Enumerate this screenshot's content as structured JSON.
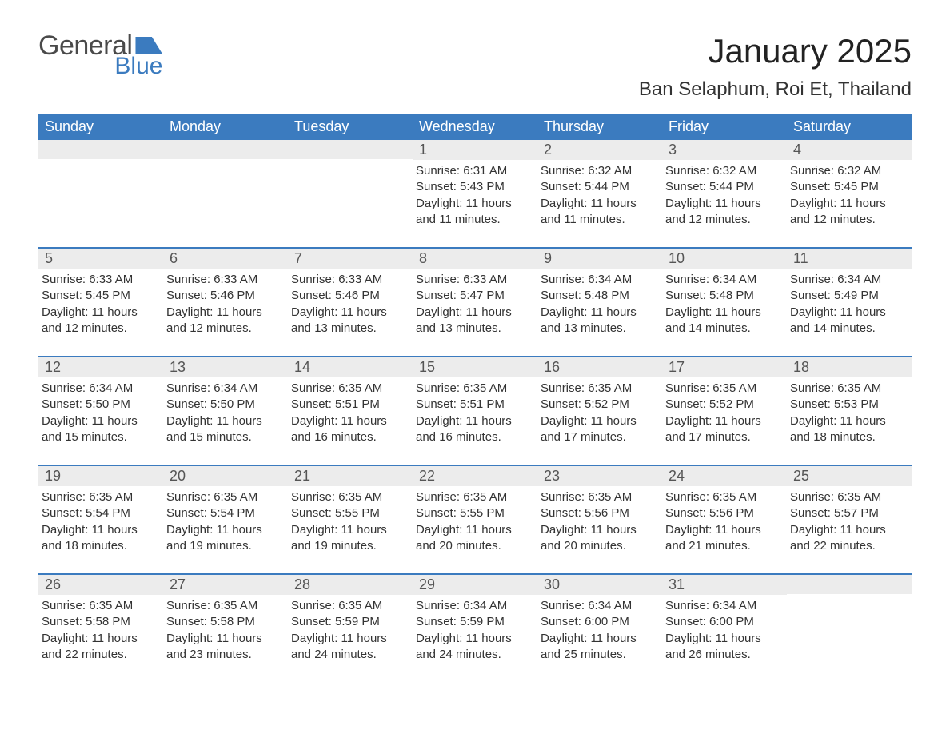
{
  "logo": {
    "text_general": "General",
    "text_blue": "Blue"
  },
  "title": {
    "month": "January 2025",
    "location": "Ban Selaphum, Roi Et, Thailand"
  },
  "style": {
    "header_bg": "#3b7bbf",
    "header_text": "#ffffff",
    "daynum_bg": "#ececec",
    "daynum_text": "#555555",
    "body_text": "#333333",
    "row_border": "#3b7bbf",
    "page_bg": "#ffffff",
    "month_fontsize": 42,
    "location_fontsize": 24,
    "dayheader_fontsize": 18,
    "content_fontsize": 15
  },
  "day_names": [
    "Sunday",
    "Monday",
    "Tuesday",
    "Wednesday",
    "Thursday",
    "Friday",
    "Saturday"
  ],
  "weeks": [
    [
      {
        "day": null
      },
      {
        "day": null
      },
      {
        "day": null
      },
      {
        "day": 1,
        "sunrise": "6:31 AM",
        "sunset": "5:43 PM",
        "daylight": "11 hours and 11 minutes."
      },
      {
        "day": 2,
        "sunrise": "6:32 AM",
        "sunset": "5:44 PM",
        "daylight": "11 hours and 11 minutes."
      },
      {
        "day": 3,
        "sunrise": "6:32 AM",
        "sunset": "5:44 PM",
        "daylight": "11 hours and 12 minutes."
      },
      {
        "day": 4,
        "sunrise": "6:32 AM",
        "sunset": "5:45 PM",
        "daylight": "11 hours and 12 minutes."
      }
    ],
    [
      {
        "day": 5,
        "sunrise": "6:33 AM",
        "sunset": "5:45 PM",
        "daylight": "11 hours and 12 minutes."
      },
      {
        "day": 6,
        "sunrise": "6:33 AM",
        "sunset": "5:46 PM",
        "daylight": "11 hours and 12 minutes."
      },
      {
        "day": 7,
        "sunrise": "6:33 AM",
        "sunset": "5:46 PM",
        "daylight": "11 hours and 13 minutes."
      },
      {
        "day": 8,
        "sunrise": "6:33 AM",
        "sunset": "5:47 PM",
        "daylight": "11 hours and 13 minutes."
      },
      {
        "day": 9,
        "sunrise": "6:34 AM",
        "sunset": "5:48 PM",
        "daylight": "11 hours and 13 minutes."
      },
      {
        "day": 10,
        "sunrise": "6:34 AM",
        "sunset": "5:48 PM",
        "daylight": "11 hours and 14 minutes."
      },
      {
        "day": 11,
        "sunrise": "6:34 AM",
        "sunset": "5:49 PM",
        "daylight": "11 hours and 14 minutes."
      }
    ],
    [
      {
        "day": 12,
        "sunrise": "6:34 AM",
        "sunset": "5:50 PM",
        "daylight": "11 hours and 15 minutes."
      },
      {
        "day": 13,
        "sunrise": "6:34 AM",
        "sunset": "5:50 PM",
        "daylight": "11 hours and 15 minutes."
      },
      {
        "day": 14,
        "sunrise": "6:35 AM",
        "sunset": "5:51 PM",
        "daylight": "11 hours and 16 minutes."
      },
      {
        "day": 15,
        "sunrise": "6:35 AM",
        "sunset": "5:51 PM",
        "daylight": "11 hours and 16 minutes."
      },
      {
        "day": 16,
        "sunrise": "6:35 AM",
        "sunset": "5:52 PM",
        "daylight": "11 hours and 17 minutes."
      },
      {
        "day": 17,
        "sunrise": "6:35 AM",
        "sunset": "5:52 PM",
        "daylight": "11 hours and 17 minutes."
      },
      {
        "day": 18,
        "sunrise": "6:35 AM",
        "sunset": "5:53 PM",
        "daylight": "11 hours and 18 minutes."
      }
    ],
    [
      {
        "day": 19,
        "sunrise": "6:35 AM",
        "sunset": "5:54 PM",
        "daylight": "11 hours and 18 minutes."
      },
      {
        "day": 20,
        "sunrise": "6:35 AM",
        "sunset": "5:54 PM",
        "daylight": "11 hours and 19 minutes."
      },
      {
        "day": 21,
        "sunrise": "6:35 AM",
        "sunset": "5:55 PM",
        "daylight": "11 hours and 19 minutes."
      },
      {
        "day": 22,
        "sunrise": "6:35 AM",
        "sunset": "5:55 PM",
        "daylight": "11 hours and 20 minutes."
      },
      {
        "day": 23,
        "sunrise": "6:35 AM",
        "sunset": "5:56 PM",
        "daylight": "11 hours and 20 minutes."
      },
      {
        "day": 24,
        "sunrise": "6:35 AM",
        "sunset": "5:56 PM",
        "daylight": "11 hours and 21 minutes."
      },
      {
        "day": 25,
        "sunrise": "6:35 AM",
        "sunset": "5:57 PM",
        "daylight": "11 hours and 22 minutes."
      }
    ],
    [
      {
        "day": 26,
        "sunrise": "6:35 AM",
        "sunset": "5:58 PM",
        "daylight": "11 hours and 22 minutes."
      },
      {
        "day": 27,
        "sunrise": "6:35 AM",
        "sunset": "5:58 PM",
        "daylight": "11 hours and 23 minutes."
      },
      {
        "day": 28,
        "sunrise": "6:35 AM",
        "sunset": "5:59 PM",
        "daylight": "11 hours and 24 minutes."
      },
      {
        "day": 29,
        "sunrise": "6:34 AM",
        "sunset": "5:59 PM",
        "daylight": "11 hours and 24 minutes."
      },
      {
        "day": 30,
        "sunrise": "6:34 AM",
        "sunset": "6:00 PM",
        "daylight": "11 hours and 25 minutes."
      },
      {
        "day": 31,
        "sunrise": "6:34 AM",
        "sunset": "6:00 PM",
        "daylight": "11 hours and 26 minutes."
      },
      {
        "day": null
      }
    ]
  ],
  "labels": {
    "sunrise": "Sunrise: ",
    "sunset": "Sunset: ",
    "daylight": "Daylight: "
  }
}
